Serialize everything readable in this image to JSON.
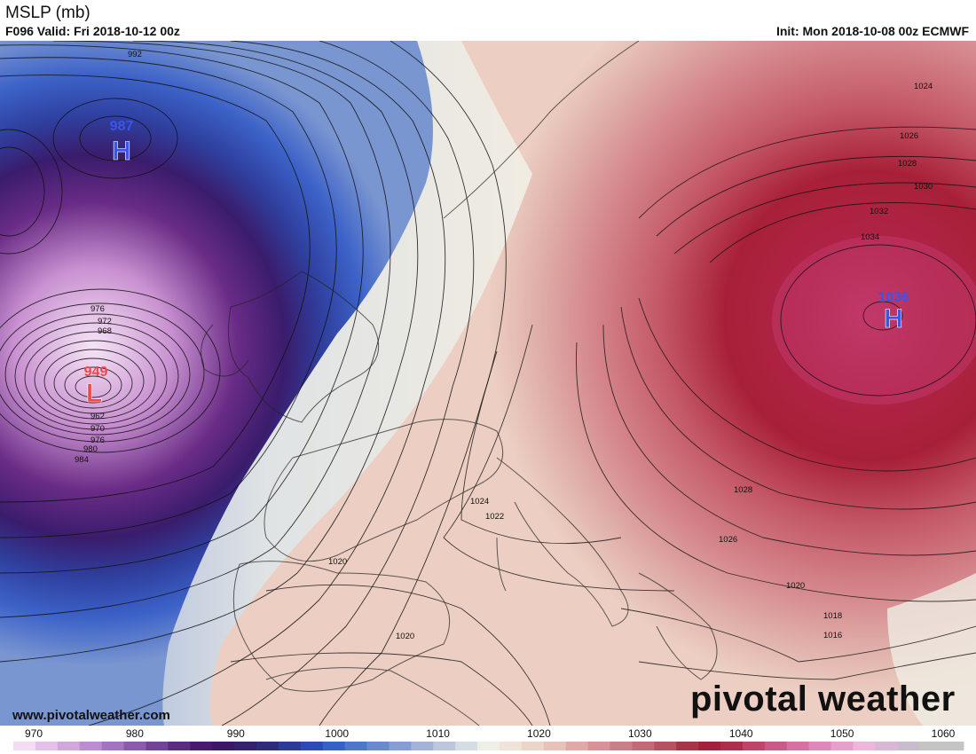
{
  "header": {
    "title": "MSLP (mb)",
    "valid": "F096 Valid: Fri 2018-10-12 00z",
    "init": "Init: Mon 2018-10-08 00z ECMWF"
  },
  "footer": {
    "website": "www.pivotalweather.com",
    "brand": "pivotal weather"
  },
  "pressure_centers": [
    {
      "label": "H",
      "value": "987",
      "color": "#3a55e8"
    },
    {
      "label": "L",
      "value": "949",
      "color": "#f04848"
    },
    {
      "label": "H",
      "value": "1036",
      "color": "#3a55e8"
    }
  ],
  "isobar_labels": [
    "992",
    "976",
    "972",
    "968",
    "962",
    "970",
    "976",
    "980",
    "984",
    "1024",
    "1026",
    "1028",
    "1030",
    "1032",
    "1034",
    "1024",
    "1022",
    "1020",
    "1028",
    "1026",
    "1020",
    "1018",
    "1016",
    "1020"
  ],
  "colorbar": {
    "ticks": [
      "970",
      "980",
      "990",
      "1000",
      "1010",
      "1020",
      "1030",
      "1040",
      "1050",
      "1060"
    ],
    "colors": [
      "#f4dcf4",
      "#e4c0e8",
      "#d2a8dc",
      "#bc8ccc",
      "#a474bc",
      "#8c5ca8",
      "#744494",
      "#5c2c80",
      "#4a1a70",
      "#3e1868",
      "#34226a",
      "#2e2a7c",
      "#2c3a98",
      "#2e4ab8",
      "#3860c8",
      "#5076cc",
      "#6a8ad0",
      "#869ed4",
      "#a2b2d8",
      "#bcc6dc",
      "#d6dde2",
      "#eef0e8",
      "#f0e4d8",
      "#ecd4c8",
      "#e6c2b8",
      "#deaaa8",
      "#d69498",
      "#cc7e86",
      "#c46a76",
      "#b85262",
      "#a83448",
      "#a4203c",
      "#b02c4c",
      "#c0446a",
      "#cc5a88",
      "#d870a4",
      "#e088bc",
      "#e6a0cc",
      "#ecb8da",
      "#d8b8d4",
      "#c8bccc",
      "#c4c4c4",
      "#c4c4c4"
    ]
  },
  "colors": {
    "high_label": "#3a55e8",
    "low_label": "#f04848"
  }
}
